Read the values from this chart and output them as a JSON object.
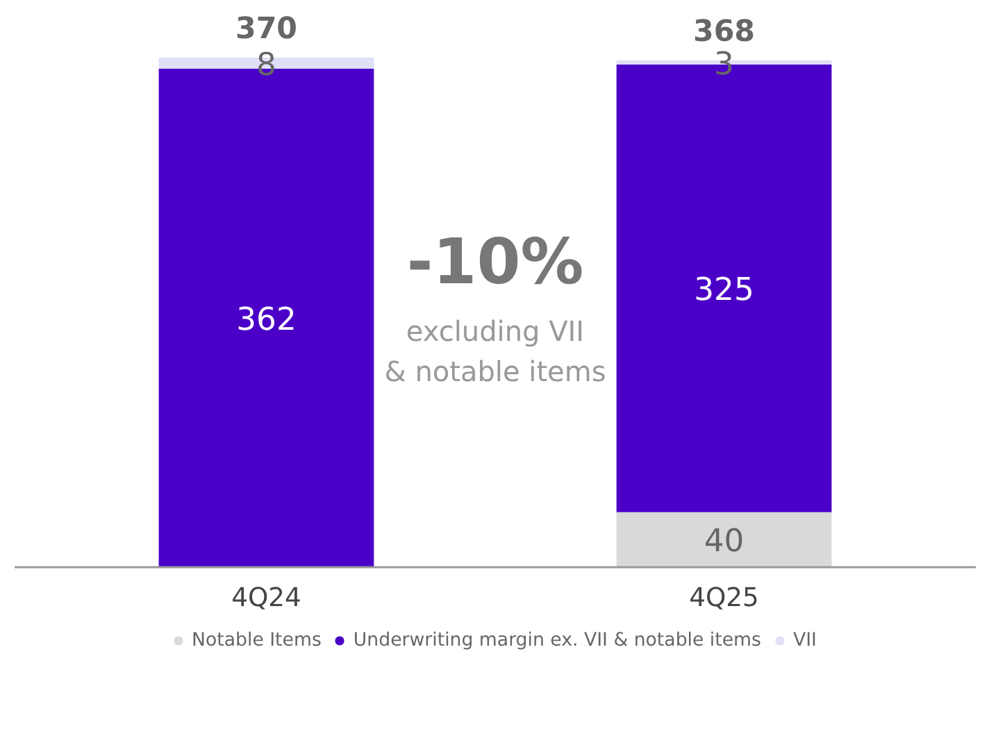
{
  "chart_data": {
    "type": "bar",
    "stacked": true,
    "categories": [
      "4Q24",
      "4Q25"
    ],
    "series": [
      {
        "name": "Notable Items",
        "color": "#d9d9d9",
        "values": [
          null,
          40
        ]
      },
      {
        "name": "Underwriting margin ex. VII & notable items",
        "color": "#4b00c8",
        "values": [
          362,
          325
        ]
      },
      {
        "name": "VII",
        "color": "#e0dff8",
        "values": [
          8,
          3
        ]
      }
    ],
    "data_labels": true,
    "totals": [
      "370",
      "368"
    ],
    "tick_labels": "x",
    "legend": "bottom",
    "grid": false,
    "annotations": [
      "-10%",
      "excluding VII & notable items"
    ]
  }
}
